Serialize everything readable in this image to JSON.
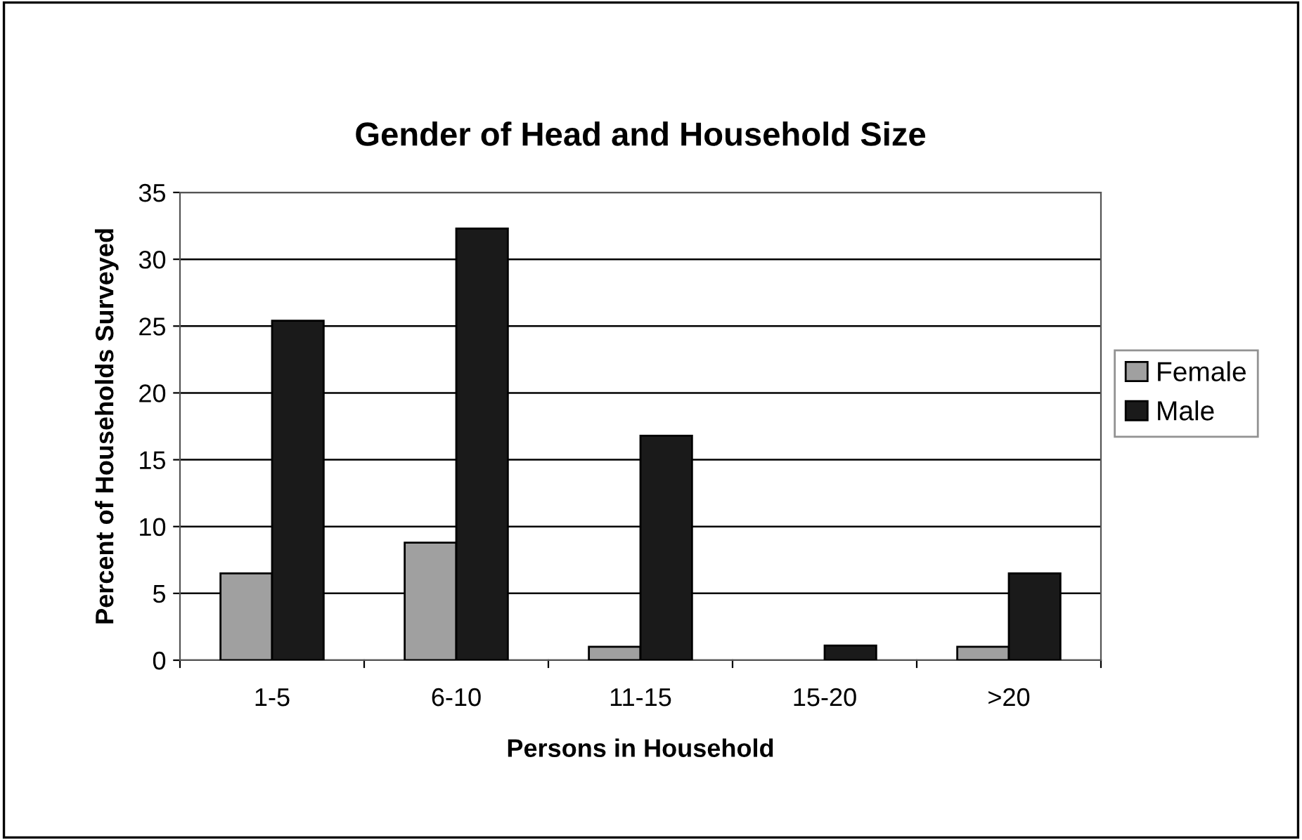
{
  "chart_data": {
    "type": "bar",
    "title": "Gender of Head and Household Size",
    "xlabel": "Persons in Household",
    "ylabel": "Percent of Households Surveyed",
    "categories": [
      "1-5",
      "6-10",
      "11-15",
      "15-20",
      ">20"
    ],
    "series": [
      {
        "name": "Female",
        "color": "#a0a0a0",
        "values": [
          6.5,
          8.8,
          1.0,
          null,
          1.0
        ]
      },
      {
        "name": "Male",
        "color": "#1a1a1a",
        "values": [
          25.4,
          32.3,
          16.8,
          1.1,
          6.5
        ]
      }
    ],
    "ylim": [
      0,
      35
    ],
    "yticks": [
      0,
      5,
      10,
      15,
      20,
      25,
      30,
      35
    ],
    "grid": "y",
    "legend": "right"
  }
}
